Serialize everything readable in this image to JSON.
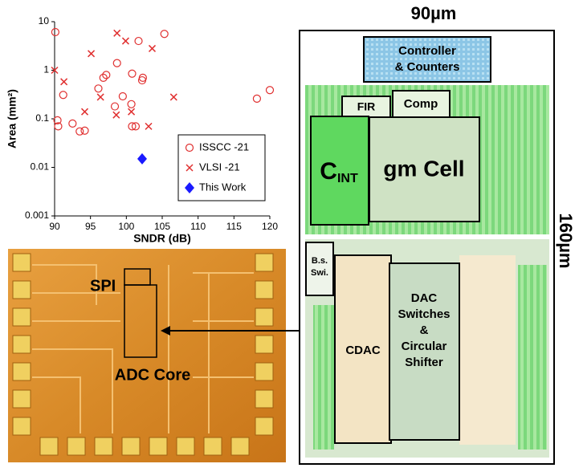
{
  "chart_data": {
    "type": "scatter",
    "x_label": "SNDR (dB)",
    "y_label": "Area (mm²)",
    "xlim": [
      90,
      120
    ],
    "xticks": [
      90,
      95,
      100,
      105,
      110,
      115,
      120
    ],
    "ylim": [
      0.001,
      10
    ],
    "yticks": [
      0.001,
      0.01,
      0.1,
      1,
      10
    ],
    "log_y": true,
    "grid": false,
    "legend": "right",
    "series": [
      {
        "name": "ISSCC -21",
        "color": "#e03030",
        "marker": "circle",
        "x": [
          90.1,
          90.4,
          90.5,
          91.2,
          92.5,
          93.5,
          94.2,
          96.1,
          96.8,
          97.2,
          98.4,
          98.7,
          99.5,
          100.7,
          100.8,
          100.8,
          101.3,
          101.7,
          102.3,
          102.2,
          105.3,
          118.2,
          120
        ],
        "y": [
          6.1,
          0.093,
          0.07,
          0.31,
          0.08,
          0.055,
          0.057,
          0.42,
          0.7,
          0.8,
          0.18,
          1.4,
          0.29,
          0.2,
          0.85,
          0.07,
          0.07,
          4,
          0.7,
          0.62,
          5.6,
          0.26,
          0.39
        ]
      },
      {
        "name": "VLSI -21",
        "color": "#e03030",
        "marker": "x",
        "x": [
          90,
          91.3,
          95.1,
          94.2,
          96.4,
          98.7,
          99.9,
          98.6,
          100.7,
          103.6,
          103.1,
          106.6
        ],
        "y": [
          1.0,
          0.58,
          2.2,
          0.14,
          0.28,
          5.8,
          4,
          0.12,
          0.14,
          2.8,
          0.07,
          0.28
        ]
      },
      {
        "name": "This Work",
        "color": "#1a1aff",
        "marker": "diamond",
        "x": [
          102.2
        ],
        "y": [
          0.015
        ]
      }
    ]
  },
  "layout": {
    "width_label": "90µm",
    "height_label": "160µm",
    "controller": [
      "Controller",
      "& Counters"
    ],
    "fir": "FIR",
    "comp": "Comp",
    "cint": {
      "main": "C",
      "sub": "INT"
    },
    "gm_cell": "gm Cell",
    "bs_switch": [
      "B.s.",
      "Swi."
    ],
    "cdac": "CDAC",
    "dac_switches": [
      "DAC",
      "Switches",
      "&",
      "Circular",
      "Shifter"
    ]
  },
  "die_photo": {
    "spi": "SPI",
    "adc_core": "ADC Core"
  }
}
